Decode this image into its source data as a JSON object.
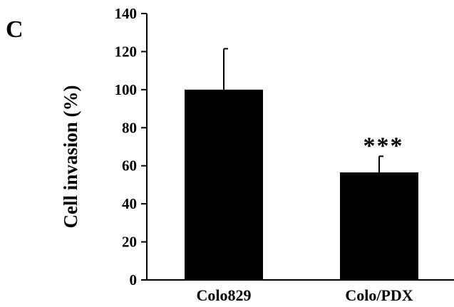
{
  "panel_label": "C",
  "chart_data": {
    "type": "bar",
    "categories": [
      "Colo829",
      "Colo/PDX"
    ],
    "values": [
      100,
      56.5
    ],
    "error": [
      21.5,
      8.5
    ],
    "annotations": [
      "",
      "***"
    ],
    "ylabel": "Cell invasion  (%)",
    "xlabel": "",
    "ylim": [
      0,
      140
    ],
    "yticks": [
      0,
      20,
      40,
      60,
      80,
      100,
      120,
      140
    ],
    "grid": false,
    "bar_color": "#000000"
  }
}
